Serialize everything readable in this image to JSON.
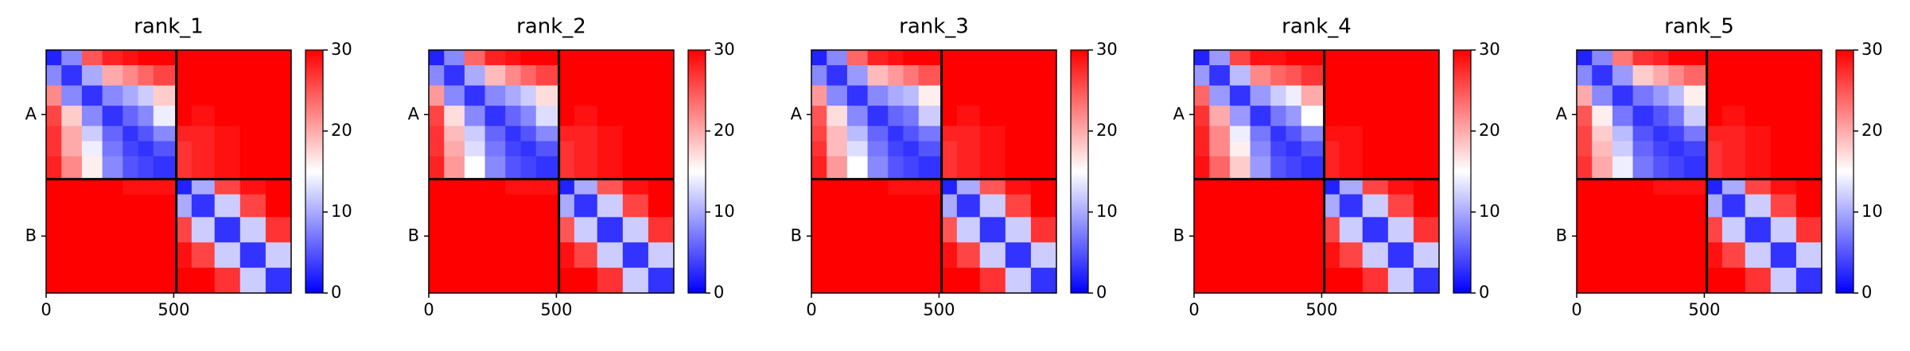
{
  "chart_data": [
    {
      "type": "heatmap",
      "title": "rank_1",
      "colormap": "bwr",
      "x_bins": [
        0,
        60,
        140,
        220,
        300,
        360,
        420,
        510,
        570,
        660,
        760,
        860,
        960
      ],
      "y_bins": [
        0,
        60,
        140,
        220,
        300,
        360,
        420,
        510,
        570,
        660,
        760,
        860,
        960
      ],
      "xlim": [
        0,
        960
      ],
      "ylim": [
        960,
        0
      ],
      "xticks": [
        0,
        500
      ],
      "yticks": [
        {
          "value": 255,
          "label": "A"
        },
        {
          "value": 735,
          "label": "B"
        }
      ],
      "boundaries": [
        510
      ],
      "clim": [
        0,
        30
      ],
      "cticks": [
        0,
        10,
        20,
        30
      ],
      "values": [
        [
          2,
          8,
          25,
          28,
          29,
          30,
          30,
          30,
          30,
          30,
          30,
          30
        ],
        [
          8,
          3,
          10,
          20,
          22,
          24,
          26,
          30,
          30,
          30,
          30,
          30
        ],
        [
          22,
          8,
          3,
          8,
          10,
          12,
          18,
          30,
          30,
          30,
          30,
          30
        ],
        [
          26,
          18,
          8,
          3,
          6,
          8,
          14,
          30,
          29,
          30,
          30,
          30
        ],
        [
          27,
          20,
          12,
          6,
          3,
          5,
          8,
          28,
          28,
          29,
          30,
          30
        ],
        [
          27,
          20,
          14,
          7,
          4,
          3,
          5,
          27,
          28,
          29,
          30,
          30
        ],
        [
          28,
          22,
          16,
          8,
          5,
          4,
          3,
          27,
          28,
          29,
          30,
          30
        ],
        [
          30,
          30,
          30,
          30,
          29,
          29,
          29,
          2,
          10,
          26,
          29,
          30
        ],
        [
          30,
          30,
          30,
          30,
          30,
          30,
          30,
          10,
          3,
          12,
          26,
          30
        ],
        [
          30,
          30,
          30,
          30,
          30,
          30,
          30,
          26,
          12,
          3,
          12,
          27
        ],
        [
          30,
          30,
          30,
          30,
          30,
          30,
          30,
          29,
          26,
          12,
          3,
          12
        ],
        [
          30,
          30,
          30,
          30,
          30,
          30,
          30,
          30,
          30,
          27,
          12,
          3
        ]
      ]
    },
    {
      "type": "heatmap",
      "title": "rank_2",
      "colormap": "bwr",
      "x_bins": [
        0,
        60,
        140,
        220,
        300,
        360,
        420,
        510,
        570,
        660,
        760,
        860,
        960
      ],
      "y_bins": [
        0,
        60,
        140,
        220,
        300,
        360,
        420,
        510,
        570,
        660,
        760,
        860,
        960
      ],
      "xlim": [
        0,
        960
      ],
      "ylim": [
        960,
        0
      ],
      "xticks": [
        0,
        500
      ],
      "yticks": [
        {
          "value": 255,
          "label": "A"
        },
        {
          "value": 735,
          "label": "B"
        }
      ],
      "boundaries": [
        510
      ],
      "clim": [
        0,
        30
      ],
      "cticks": [
        0,
        10,
        20,
        30
      ],
      "values": [
        [
          2,
          8,
          24,
          28,
          29,
          30,
          30,
          30,
          30,
          30,
          30,
          30
        ],
        [
          8,
          3,
          10,
          19,
          22,
          24,
          26,
          30,
          30,
          30,
          30,
          30
        ],
        [
          21,
          8,
          3,
          8,
          10,
          12,
          17,
          30,
          30,
          30,
          30,
          30
        ],
        [
          26,
          17,
          8,
          3,
          6,
          8,
          13,
          30,
          29,
          30,
          30,
          30
        ],
        [
          27,
          19,
          12,
          6,
          3,
          5,
          8,
          28,
          28,
          29,
          30,
          30
        ],
        [
          27,
          20,
          13,
          7,
          4,
          3,
          5,
          27,
          28,
          29,
          30,
          30
        ],
        [
          28,
          21,
          15,
          8,
          5,
          4,
          3,
          27,
          28,
          29,
          30,
          30
        ],
        [
          30,
          30,
          30,
          30,
          29,
          29,
          29,
          2,
          10,
          25,
          29,
          30
        ],
        [
          30,
          30,
          30,
          30,
          30,
          30,
          30,
          10,
          3,
          12,
          26,
          30
        ],
        [
          30,
          30,
          30,
          30,
          30,
          30,
          30,
          25,
          12,
          3,
          12,
          27
        ],
        [
          30,
          30,
          30,
          30,
          30,
          30,
          30,
          29,
          26,
          12,
          3,
          12
        ],
        [
          30,
          30,
          30,
          30,
          30,
          30,
          30,
          30,
          30,
          27,
          12,
          3
        ]
      ]
    },
    {
      "type": "heatmap",
      "title": "rank_3",
      "colormap": "bwr",
      "x_bins": [
        0,
        60,
        140,
        220,
        300,
        360,
        420,
        510,
        570,
        660,
        760,
        860,
        960
      ],
      "y_bins": [
        0,
        60,
        140,
        220,
        300,
        360,
        420,
        510,
        570,
        660,
        760,
        860,
        960
      ],
      "xlim": [
        0,
        960
      ],
      "ylim": [
        960,
        0
      ],
      "xticks": [
        0,
        500
      ],
      "yticks": [
        {
          "value": 255,
          "label": "A"
        },
        {
          "value": 735,
          "label": "B"
        }
      ],
      "boundaries": [
        510
      ],
      "clim": [
        0,
        30
      ],
      "cticks": [
        0,
        10,
        20,
        30
      ],
      "values": [
        [
          2,
          8,
          24,
          28,
          29,
          30,
          30,
          30,
          30,
          30,
          30,
          30
        ],
        [
          8,
          3,
          9,
          19,
          21,
          23,
          25,
          30,
          30,
          30,
          30,
          30
        ],
        [
          21,
          8,
          3,
          8,
          10,
          11,
          16,
          30,
          30,
          30,
          30,
          30
        ],
        [
          25,
          17,
          8,
          3,
          6,
          7,
          12,
          30,
          29,
          30,
          30,
          30
        ],
        [
          26,
          19,
          11,
          6,
          3,
          5,
          7,
          28,
          28,
          29,
          30,
          30
        ],
        [
          27,
          19,
          13,
          7,
          4,
          3,
          5,
          27,
          28,
          29,
          30,
          30
        ],
        [
          28,
          21,
          15,
          8,
          5,
          4,
          3,
          27,
          28,
          29,
          30,
          30
        ],
        [
          30,
          30,
          30,
          30,
          29,
          29,
          29,
          2,
          10,
          25,
          29,
          30
        ],
        [
          30,
          30,
          30,
          30,
          30,
          30,
          30,
          10,
          3,
          12,
          26,
          30
        ],
        [
          30,
          30,
          30,
          30,
          30,
          30,
          30,
          25,
          12,
          3,
          12,
          27
        ],
        [
          30,
          30,
          30,
          30,
          30,
          30,
          30,
          29,
          26,
          12,
          3,
          12
        ],
        [
          30,
          30,
          30,
          30,
          30,
          30,
          30,
          30,
          30,
          27,
          12,
          3
        ]
      ]
    },
    {
      "type": "heatmap",
      "title": "rank_4",
      "colormap": "bwr",
      "x_bins": [
        0,
        60,
        140,
        220,
        300,
        360,
        420,
        510,
        570,
        660,
        760,
        860,
        960
      ],
      "y_bins": [
        0,
        60,
        140,
        220,
        300,
        360,
        420,
        510,
        570,
        660,
        760,
        860,
        960
      ],
      "xlim": [
        0,
        960
      ],
      "ylim": [
        960,
        0
      ],
      "xticks": [
        0,
        500
      ],
      "yticks": [
        {
          "value": 255,
          "label": "A"
        },
        {
          "value": 735,
          "label": "B"
        }
      ],
      "boundaries": [
        510
      ],
      "clim": [
        0,
        30
      ],
      "cticks": [
        0,
        10,
        20,
        30
      ],
      "values": [
        [
          2,
          9,
          26,
          29,
          29,
          30,
          30,
          30,
          30,
          30,
          30,
          30
        ],
        [
          9,
          3,
          11,
          22,
          24,
          25,
          27,
          30,
          30,
          30,
          30,
          30
        ],
        [
          24,
          9,
          3,
          9,
          12,
          14,
          20,
          30,
          30,
          30,
          30,
          30
        ],
        [
          27,
          20,
          9,
          3,
          7,
          9,
          15,
          30,
          30,
          30,
          30,
          30
        ],
        [
          28,
          22,
          14,
          7,
          3,
          5,
          8,
          29,
          29,
          30,
          30,
          30
        ],
        [
          28,
          22,
          16,
          8,
          4,
          3,
          5,
          28,
          29,
          30,
          30,
          30
        ],
        [
          29,
          24,
          18,
          9,
          5,
          4,
          3,
          28,
          29,
          30,
          30,
          30
        ],
        [
          30,
          30,
          30,
          30,
          30,
          30,
          30,
          2,
          10,
          26,
          29,
          30
        ],
        [
          30,
          30,
          30,
          30,
          30,
          30,
          30,
          10,
          3,
          12,
          26,
          30
        ],
        [
          30,
          30,
          30,
          30,
          30,
          30,
          30,
          26,
          12,
          3,
          12,
          27
        ],
        [
          30,
          30,
          30,
          30,
          30,
          30,
          30,
          29,
          26,
          12,
          3,
          12
        ],
        [
          30,
          30,
          30,
          30,
          30,
          30,
          30,
          30,
          30,
          27,
          12,
          3
        ]
      ]
    },
    {
      "type": "heatmap",
      "title": "rank_5",
      "colormap": "bwr",
      "x_bins": [
        0,
        60,
        140,
        220,
        300,
        360,
        420,
        510,
        570,
        660,
        760,
        860,
        960
      ],
      "y_bins": [
        0,
        60,
        140,
        220,
        300,
        360,
        420,
        510,
        570,
        660,
        760,
        860,
        960
      ],
      "xlim": [
        0,
        960
      ],
      "ylim": [
        960,
        0
      ],
      "xticks": [
        0,
        500
      ],
      "yticks": [
        {
          "value": 255,
          "label": "A"
        },
        {
          "value": 735,
          "label": "B"
        }
      ],
      "boundaries": [
        510
      ],
      "clim": [
        0,
        30
      ],
      "cticks": [
        0,
        10,
        20,
        30
      ],
      "values": [
        [
          2,
          8,
          23,
          27,
          28,
          30,
          30,
          30,
          30,
          30,
          30,
          30
        ],
        [
          8,
          3,
          9,
          18,
          20,
          22,
          24,
          30,
          30,
          30,
          30,
          30
        ],
        [
          20,
          8,
          3,
          7,
          9,
          11,
          16,
          30,
          30,
          30,
          30,
          30
        ],
        [
          25,
          16,
          7,
          3,
          5,
          7,
          12,
          30,
          29,
          30,
          30,
          30
        ],
        [
          26,
          18,
          11,
          5,
          3,
          4,
          7,
          28,
          28,
          29,
          30,
          30
        ],
        [
          26,
          19,
          12,
          6,
          4,
          3,
          4,
          27,
          28,
          29,
          30,
          30
        ],
        [
          27,
          20,
          14,
          7,
          5,
          4,
          3,
          27,
          28,
          29,
          30,
          30
        ],
        [
          30,
          30,
          30,
          30,
          29,
          29,
          29,
          2,
          10,
          26,
          29,
          30
        ],
        [
          30,
          30,
          30,
          30,
          30,
          30,
          30,
          10,
          3,
          12,
          26,
          30
        ],
        [
          30,
          30,
          30,
          30,
          30,
          30,
          30,
          26,
          12,
          3,
          12,
          27
        ],
        [
          30,
          30,
          30,
          30,
          30,
          30,
          30,
          29,
          26,
          12,
          3,
          12
        ],
        [
          30,
          30,
          30,
          30,
          30,
          30,
          30,
          30,
          30,
          27,
          12,
          3
        ]
      ]
    }
  ]
}
